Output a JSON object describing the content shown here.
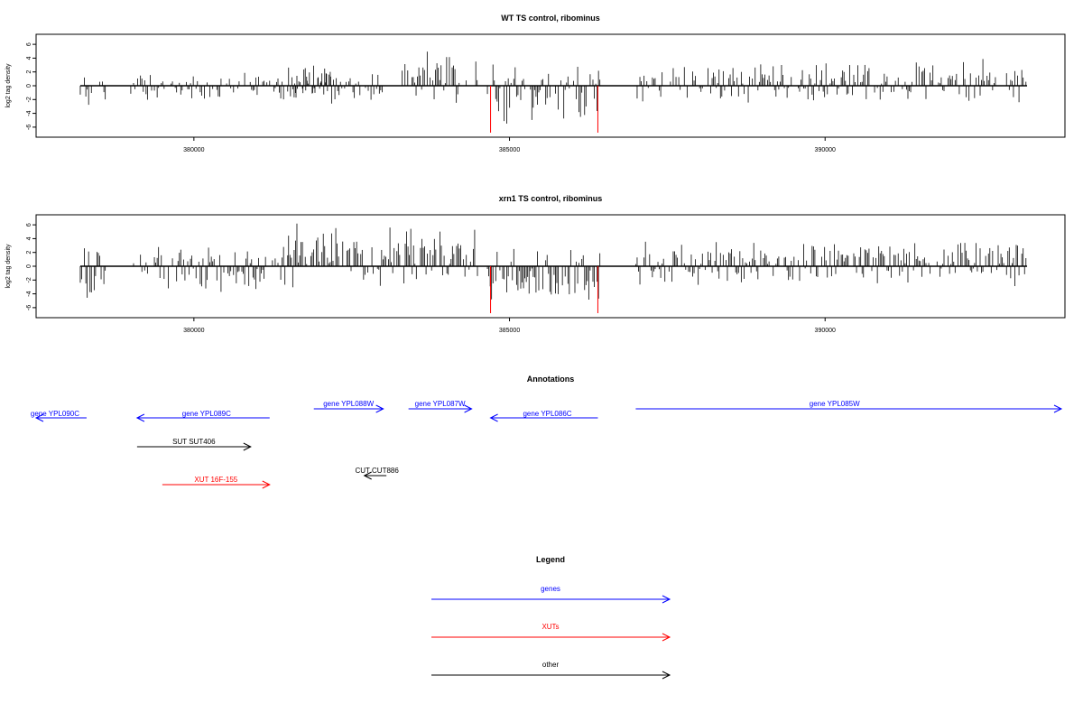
{
  "chart_data": [
    {
      "type": "bar",
      "title": "WT TS control, ribominus",
      "ylabel": "log2 tag density",
      "xlabel": "",
      "xlim": [
        377500,
        393800
      ],
      "ylim": [
        -7.5,
        7.5
      ],
      "x_ticks": [
        "380000",
        "385000",
        "390000"
      ],
      "x_tick_values": [
        380000,
        385000,
        390000
      ],
      "y_ticks": [
        "-6",
        "-4",
        "-2",
        "0",
        "2",
        "4",
        "6"
      ],
      "y_tick_values": [
        -6,
        -4,
        -2,
        0,
        2,
        4,
        6
      ],
      "baseline": [
        378200,
        393200
      ],
      "red_bars": [
        {
          "x": 384700,
          "y": -6.8
        },
        {
          "x": 386400,
          "y": -6.8
        }
      ],
      "regions": [
        {
          "start": 378200,
          "end": 378600,
          "bias": -0.8,
          "scale": 2.5,
          "seed": 11
        },
        {
          "start": 379000,
          "end": 383000,
          "bias": -0.1,
          "scale": 2.0,
          "seed": 12
        },
        {
          "start": 381500,
          "end": 382200,
          "bias": 0.7,
          "scale": 3.0,
          "seed": 13
        },
        {
          "start": 383300,
          "end": 384500,
          "bias": 0.9,
          "scale": 3.5,
          "seed": 14
        },
        {
          "start": 384650,
          "end": 386450,
          "bias": -1.0,
          "scale": 4.0,
          "seed": 15
        },
        {
          "start": 387000,
          "end": 393200,
          "bias": 0.4,
          "scale": 3.0,
          "seed": 16
        }
      ]
    },
    {
      "type": "bar",
      "title": "xrn1 TS control, ribominus",
      "ylabel": "log2 tag density",
      "xlabel": "",
      "xlim": [
        377500,
        393800
      ],
      "ylim": [
        -7.5,
        7.5
      ],
      "x_ticks": [
        "380000",
        "385000",
        "390000"
      ],
      "x_tick_values": [
        380000,
        385000,
        390000
      ],
      "y_ticks": [
        "-6",
        "-4",
        "-2",
        "0",
        "2",
        "4",
        "6"
      ],
      "y_tick_values": [
        -6,
        -4,
        -2,
        0,
        2,
        4,
        6
      ],
      "baseline": [
        378200,
        393200
      ],
      "red_bars": [
        {
          "x": 384700,
          "y": -6.8
        },
        {
          "x": 386400,
          "y": -6.8
        }
      ],
      "regions": [
        {
          "start": 378200,
          "end": 378600,
          "bias": -1.2,
          "scale": 4.0,
          "seed": 21
        },
        {
          "start": 379000,
          "end": 381500,
          "bias": -0.3,
          "scale": 3.5,
          "seed": 22
        },
        {
          "start": 381500,
          "end": 384500,
          "bias": 1.5,
          "scale": 4.5,
          "seed": 23
        },
        {
          "start": 384650,
          "end": 386450,
          "bias": -1.8,
          "scale": 4.5,
          "seed": 24
        },
        {
          "start": 387000,
          "end": 393200,
          "bias": 0.5,
          "scale": 3.0,
          "seed": 25
        }
      ]
    }
  ],
  "annotations": {
    "title": "Annotations",
    "tracks": [
      {
        "label": "gene YPL090C",
        "type": "gene",
        "strand": "-",
        "start": 377500,
        "end": 378300,
        "row": 1,
        "label_at": 377800
      },
      {
        "label": "gene YPL089C",
        "type": "gene",
        "strand": "-",
        "start": 379100,
        "end": 381200,
        "row": 1,
        "label_at": 380200
      },
      {
        "label": "gene YPL088W",
        "type": "gene",
        "strand": "+",
        "start": 381900,
        "end": 383000,
        "row": 0,
        "label_at": 382450
      },
      {
        "label": "gene YPL087W",
        "type": "gene",
        "strand": "+",
        "start": 383400,
        "end": 384400,
        "row": 0,
        "label_at": 383900
      },
      {
        "label": "gene YPL086C",
        "type": "gene",
        "strand": "-",
        "start": 384700,
        "end": 386400,
        "row": 1,
        "label_at": 385600
      },
      {
        "label": "gene YPL085W",
        "type": "gene",
        "strand": "+",
        "start": 387000,
        "end": 393800,
        "row": 0,
        "label_at": 390150
      },
      {
        "label": "SUT SUT406",
        "type": "other",
        "strand": "+",
        "start": 379100,
        "end": 380900,
        "row": 2,
        "label_at": 380000
      },
      {
        "label": "CUT CUT886",
        "type": "other",
        "strand": "-",
        "start": 382700,
        "end": 383050,
        "row": 3,
        "label_at": 382900
      },
      {
        "label": "XUT 16F-155",
        "type": "xut",
        "strand": "+",
        "start": 379500,
        "end": 381200,
        "row": 4,
        "label_at": 380350
      }
    ]
  },
  "legend": {
    "title": "Legend",
    "items": [
      {
        "label": "genes",
        "color": "#0000ff"
      },
      {
        "label": "XUTs",
        "color": "#ff0000"
      },
      {
        "label": "other",
        "color": "#000000"
      }
    ]
  },
  "colors": {
    "gene": "#0000ff",
    "xut": "#ff0000",
    "other": "#000000",
    "bar": "#000000",
    "red_bar": "#ff0000"
  }
}
